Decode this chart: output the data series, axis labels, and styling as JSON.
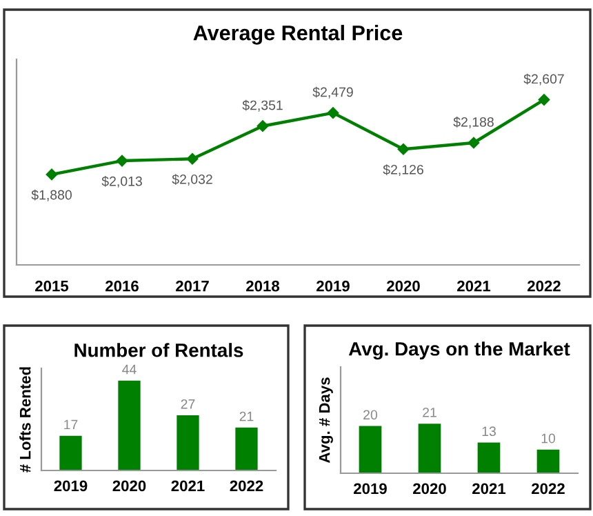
{
  "chart_data": [
    {
      "type": "line",
      "title": "Average Rental Price",
      "categories": [
        "2015",
        "2016",
        "2017",
        "2018",
        "2019",
        "2020",
        "2021",
        "2022"
      ],
      "series": [
        {
          "color": "#008000",
          "values": [
            1880,
            2013,
            2032,
            2351,
            2479,
            2126,
            2188,
            2607
          ],
          "value_labels": [
            "$1,880",
            "$2,013",
            "$2,032",
            "$2,351",
            "$2,479",
            "$2,126",
            "$2,188",
            "$2,607"
          ]
        }
      ],
      "ylim": [
        1000,
        3000
      ],
      "tick_labels": "x",
      "marker": "diamond",
      "line_style": "solid",
      "grid": false,
      "legend": false
    },
    {
      "type": "bar",
      "title": "Number of Rentals",
      "ylabel": "# Lofts Rented",
      "categories": [
        "2019",
        "2020",
        "2021",
        "2022"
      ],
      "series": [
        {
          "color": "#008000",
          "values": [
            17,
            44,
            27,
            21
          ]
        }
      ],
      "ylim": [
        0,
        50
      ],
      "tick_labels": "x",
      "data_labels": true,
      "grid": false,
      "legend": false
    },
    {
      "type": "bar",
      "title": "Avg. Days on the Market",
      "ylabel": "Avg. # Days",
      "categories": [
        "2019",
        "2020",
        "2021",
        "2022"
      ],
      "series": [
        {
          "color": "#008000",
          "values": [
            20,
            21,
            13,
            10
          ]
        }
      ],
      "ylim": [
        0,
        45
      ],
      "tick_labels": "x",
      "data_labels": true,
      "grid": false,
      "legend": false
    }
  ]
}
